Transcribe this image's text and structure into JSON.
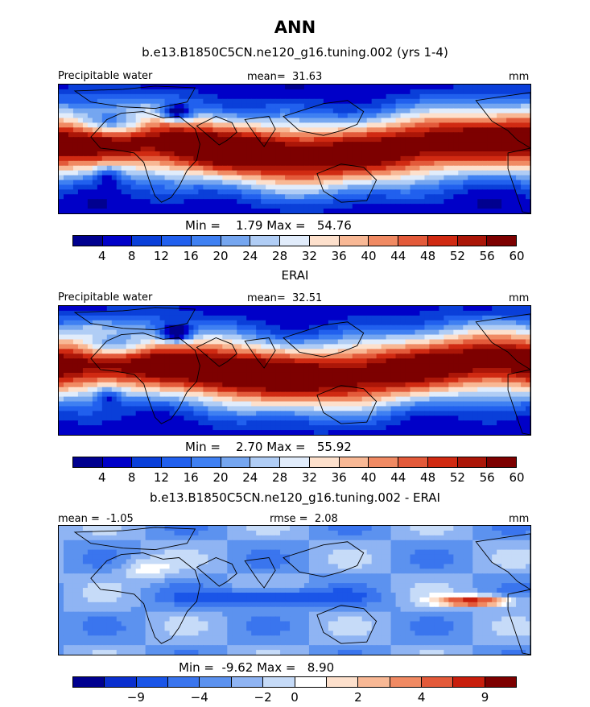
{
  "page_title": "ANN",
  "colors": {
    "land_line": "#000000",
    "seq_scale": [
      "#00008f",
      "#0000c8",
      "#0a3fd9",
      "#2160ee",
      "#3f80f2",
      "#75a6f0",
      "#b0cdf5",
      "#e1ecfb",
      "#fde0cc",
      "#f8b895",
      "#f08a63",
      "#e35a3a",
      "#d02a12",
      "#ab1608",
      "#7d0000"
    ],
    "diff_scale": [
      "#00008f",
      "#0a2fcf",
      "#1a55e8",
      "#3a75ee",
      "#5c92ef",
      "#8fb4f3",
      "#c6dbf8",
      "#ffffff",
      "#fde0cc",
      "#f8b895",
      "#f08a63",
      "#e35a3a",
      "#c81e0c",
      "#7d0000"
    ]
  },
  "chart_data": [
    {
      "type": "heatmap",
      "title": "b.e13.B1850C5CN.ne120_g16.tuning.002 (yrs 1-4)",
      "left_label": "Precipitable water",
      "mean_label": "mean=",
      "mean_value": "31.63",
      "units": "mm",
      "min_label": "Min =",
      "min_value": "1.79",
      "max_label": "Max =",
      "max_value": "54.76",
      "colorbar_ticks": [
        "4",
        "8",
        "12",
        "16",
        "20",
        "24",
        "28",
        "32",
        "36",
        "40",
        "44",
        "48",
        "52",
        "56",
        "60"
      ],
      "field": "model"
    },
    {
      "type": "heatmap",
      "title": "ERAI",
      "left_label": "Precipitable water",
      "mean_label": "mean=",
      "mean_value": "32.51",
      "units": "mm",
      "min_label": "Min =",
      "min_value": "2.70",
      "max_label": "Max =",
      "max_value": "55.92",
      "colorbar_ticks": [
        "4",
        "8",
        "12",
        "16",
        "20",
        "24",
        "28",
        "32",
        "36",
        "40",
        "44",
        "48",
        "52",
        "56",
        "60"
      ],
      "field": "obs"
    },
    {
      "type": "heatmap",
      "title": "b.e13.B1850C5CN.ne120_g16.tuning.002 - ERAI",
      "mean_label": "mean =",
      "mean_value": "-1.05",
      "rmse_label": "rmse =",
      "rmse_value": "2.08",
      "units": "mm",
      "min_label": "Min =",
      "min_value": "-9.62",
      "max_label": "Max =",
      "max_value": "8.90",
      "colorbar_ticks": [
        "−9",
        "−4",
        "−2",
        "0",
        "2",
        "4",
        "9"
      ],
      "field": "diff"
    }
  ]
}
